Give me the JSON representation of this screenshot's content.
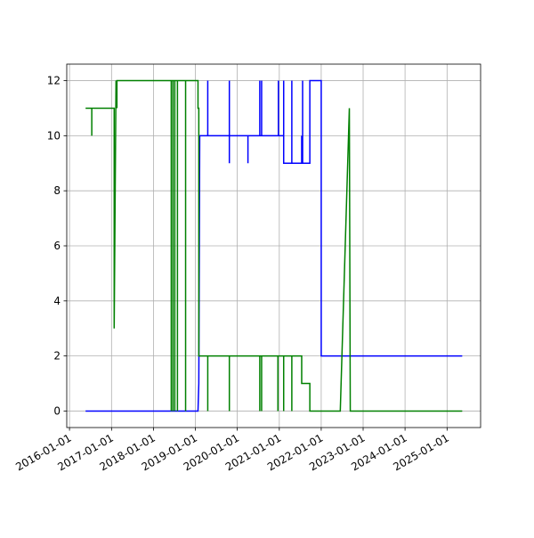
{
  "chart_data": {
    "type": "line",
    "xlim": [
      "2015-12-08",
      "2025-10-20"
    ],
    "xticks": [
      "2016-01-01",
      "2017-01-01",
      "2018-01-01",
      "2019-01-01",
      "2020-01-01",
      "2021-01-01",
      "2022-01-01",
      "2023-01-01",
      "2024-01-01",
      "2025-01-01"
    ],
    "ylim": [
      -0.6,
      12.6
    ],
    "yticks": [
      0,
      2,
      4,
      6,
      8,
      10,
      12
    ],
    "grid": true,
    "series": [
      {
        "color": "#0000ff",
        "x": [
          "2016-05-20",
          "2019-01-24",
          "2019-01-31",
          "2019-02-08",
          "2019-04-19",
          "2019-04-19",
          "2019-04-19",
          "2019-10-24",
          "2019-10-24",
          "2019-10-24",
          "2019-10-24",
          "2020-04-03",
          "2020-04-03",
          "2020-04-03",
          "2020-07-15",
          "2020-07-15",
          "2020-07-15",
          "2020-07-31",
          "2020-07-31",
          "2020-07-31",
          "2020-12-24",
          "2020-12-24",
          "2020-12-24",
          "2021-02-08",
          "2021-02-08",
          "2021-02-08",
          "2021-04-20",
          "2021-04-20",
          "2021-04-20",
          "2021-07-15",
          "2021-07-15",
          "2021-07-15",
          "2021-07-23",
          "2021-07-23",
          "2021-07-23",
          "2021-09-24",
          "2021-09-24",
          "2022-01-01",
          "2022-01-01",
          "2025-05-13"
        ],
        "values": [
          0,
          0,
          1,
          10,
          10,
          12,
          10,
          10,
          12,
          9,
          10,
          10,
          9,
          10,
          10,
          12,
          10,
          10,
          12,
          10,
          10,
          12,
          10,
          10,
          12,
          9,
          9,
          12,
          9,
          9,
          10,
          9,
          9,
          12,
          9,
          9,
          12,
          12,
          2,
          2
        ]
      },
      {
        "color": "#008000",
        "x": [
          "2016-05-20",
          "2016-07-13",
          "2016-07-13",
          "2016-07-13",
          "2017-01-24",
          "2017-01-24",
          "2017-02-09",
          "2017-02-17",
          "2017-02-17",
          "2018-06-05",
          "2018-06-05",
          "2018-06-05",
          "2018-06-20",
          "2018-06-20",
          "2018-06-20",
          "2018-07-06",
          "2018-07-06",
          "2018-07-06",
          "2018-07-29",
          "2018-07-29",
          "2018-07-29",
          "2018-10-08",
          "2018-10-08",
          "2018-10-08",
          "2019-01-24",
          "2019-01-24",
          "2019-01-31",
          "2019-01-31",
          "2019-04-19",
          "2019-04-19",
          "2019-04-19",
          "2019-10-24",
          "2019-10-24",
          "2019-10-24",
          "2020-07-15",
          "2020-07-15",
          "2020-07-15",
          "2020-07-31",
          "2020-07-31",
          "2020-07-31",
          "2020-12-20",
          "2020-12-20",
          "2020-12-20",
          "2021-02-08",
          "2021-02-08",
          "2021-02-08",
          "2021-04-20",
          "2021-04-20",
          "2021-04-20",
          "2021-07-15",
          "2021-07-15",
          "2021-09-24",
          "2021-09-24",
          "2022-06-16",
          "2022-09-03",
          "2022-09-11",
          "2025-05-13"
        ],
        "values": [
          11,
          11,
          10,
          11,
          11,
          3,
          12,
          11,
          12,
          12,
          0,
          12,
          12,
          0,
          12,
          12,
          0,
          12,
          12,
          0,
          12,
          12,
          0,
          12,
          12,
          11,
          11,
          2,
          2,
          0,
          2,
          2,
          0,
          2,
          2,
          0,
          2,
          2,
          0,
          2,
          2,
          0,
          2,
          2,
          0,
          2,
          2,
          0,
          2,
          2,
          1,
          1,
          0,
          0,
          11,
          0,
          0
        ]
      }
    ]
  }
}
